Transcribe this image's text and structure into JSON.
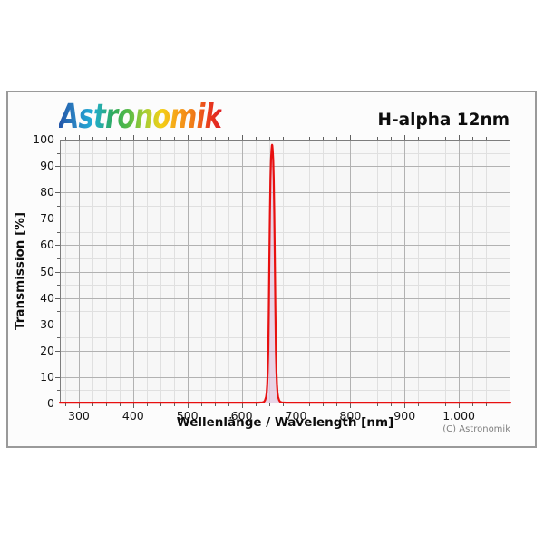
{
  "logo": {
    "text": "Astronomik"
  },
  "header": {
    "title": "H-alpha 12nm"
  },
  "chart_data": {
    "type": "line",
    "title": "H-alpha 12nm",
    "xlabel": "Wellenlänge / Wavelength [nm]",
    "ylabel": "Transmission [%]",
    "copyright": "(C) Astronomik",
    "xlim": [
      265,
      1095
    ],
    "ylim": [
      0,
      100
    ],
    "x_minor_step": 25,
    "y_minor_step": 5,
    "grid": "minor+major",
    "legend": "none",
    "x_ticks": [
      {
        "value": 300,
        "label": "300"
      },
      {
        "value": 400,
        "label": "400"
      },
      {
        "value": 500,
        "label": "500"
      },
      {
        "value": 600,
        "label": "600"
      },
      {
        "value": 700,
        "label": "700"
      },
      {
        "value": 800,
        "label": "800"
      },
      {
        "value": 900,
        "label": "900"
      },
      {
        "value": 1000,
        "label": "1.000"
      }
    ],
    "y_ticks": [
      {
        "value": 0,
        "label": "0"
      },
      {
        "value": 10,
        "label": "10"
      },
      {
        "value": 20,
        "label": "20"
      },
      {
        "value": 30,
        "label": "30"
      },
      {
        "value": 40,
        "label": "40"
      },
      {
        "value": 50,
        "label": "50"
      },
      {
        "value": 60,
        "label": "60"
      },
      {
        "value": 70,
        "label": "70"
      },
      {
        "value": 80,
        "label": "80"
      },
      {
        "value": 90,
        "label": "90"
      },
      {
        "value": 100,
        "label": "100"
      }
    ],
    "series": [
      {
        "name": "H-alpha 12nm transmission",
        "peak_center_nm": 656,
        "peak_transmission_pct": 98,
        "fwhm_nm": 12,
        "baseline_pct": 0.3,
        "points": [
          [
            265,
            0.3
          ],
          [
            350,
            0.3
          ],
          [
            450,
            0.3
          ],
          [
            550,
            0.3
          ],
          [
            600,
            0.3
          ],
          [
            630,
            0.3
          ],
          [
            638,
            0.4
          ],
          [
            641,
            0.6
          ],
          [
            643,
            1.2
          ],
          [
            645,
            2.5
          ],
          [
            646,
            4
          ],
          [
            647,
            7
          ],
          [
            648,
            12
          ],
          [
            649,
            20
          ],
          [
            650,
            36
          ],
          [
            651,
            55
          ],
          [
            652,
            72
          ],
          [
            653,
            85
          ],
          [
            654,
            92.5
          ],
          [
            655,
            96.3
          ],
          [
            655.7,
            97.8
          ],
          [
            656,
            98
          ],
          [
            656.3,
            97.8
          ],
          [
            657,
            96.3
          ],
          [
            658,
            92.5
          ],
          [
            659,
            85
          ],
          [
            660,
            72
          ],
          [
            661,
            55
          ],
          [
            662,
            36
          ],
          [
            663,
            20
          ],
          [
            664,
            12
          ],
          [
            665,
            7
          ],
          [
            666,
            4
          ],
          [
            667,
            2.5
          ],
          [
            669,
            1.2
          ],
          [
            671,
            0.6
          ],
          [
            674,
            0.4
          ],
          [
            682,
            0.3
          ],
          [
            720,
            0.3
          ],
          [
            800,
            0.3
          ],
          [
            900,
            0.3
          ],
          [
            1000,
            0.3
          ],
          [
            1095,
            0.3
          ]
        ]
      }
    ],
    "colors": {
      "curve": "#e81010",
      "curve_fill": "rgba(213,160,205,0.40)",
      "grid_minor": "#e0e0e0",
      "grid_major": "#b2b2b2",
      "frame": "#7d7d7d",
      "tick": "#606060",
      "plot_background": "#f7f7f7"
    }
  }
}
